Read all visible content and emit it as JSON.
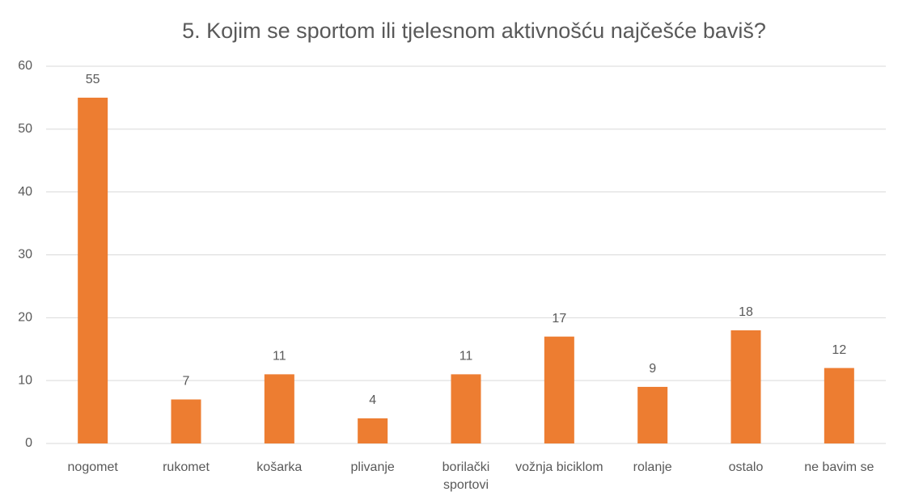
{
  "chart_data": {
    "type": "bar",
    "title": "5. Kojim se sportom ili tjelesnom aktivnošću najčešće baviš?",
    "categories": [
      "nogomet",
      "rukomet",
      "košarka",
      "plivanje",
      "borilački sportovi",
      "vožnja biciklom",
      "rolanje",
      "ostalo",
      "ne bavim se"
    ],
    "values": [
      55,
      7,
      11,
      4,
      11,
      17,
      9,
      18,
      12
    ],
    "color": "#ed7d31",
    "ylim": [
      0,
      60
    ],
    "yticks": [
      0,
      10,
      20,
      30,
      40,
      50,
      60
    ],
    "grid": true
  }
}
